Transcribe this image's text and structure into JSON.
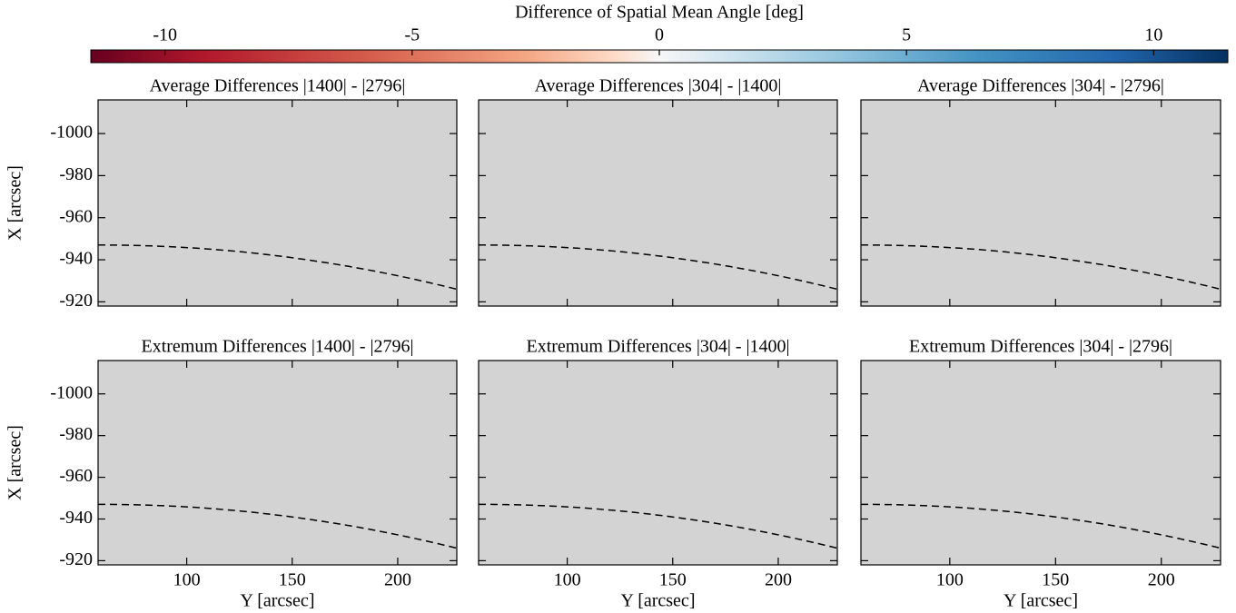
{
  "colorbar": {
    "label": "Difference of Spatial Mean Angle [deg]",
    "lim": [
      -11.5,
      11.5
    ],
    "ticks": [
      -10,
      -5,
      0,
      5,
      10
    ]
  },
  "chart_data": [
    {
      "type": "image",
      "title": "Average Differences |1400| - |2796|",
      "ylabel": "X [arcsec]",
      "xlim": [
        58,
        228
      ],
      "ylim": [
        -918,
        -1016
      ],
      "xticks": [
        100,
        150,
        200
      ],
      "yticks": [
        -1000,
        -980,
        -960,
        -940,
        -920
      ]
    },
    {
      "type": "image",
      "title": "Average Differences |304| - |1400|",
      "xlim": [
        58,
        228
      ],
      "ylim": [
        -918,
        -1016
      ],
      "xticks": [
        100,
        150,
        200
      ],
      "yticks": [
        -1000,
        -980,
        -960,
        -940,
        -920
      ]
    },
    {
      "type": "image",
      "title": "Average Differences |304| - |2796|",
      "xlim": [
        58,
        228
      ],
      "ylim": [
        -918,
        -1016
      ],
      "xticks": [
        100,
        150,
        200
      ],
      "yticks": [
        -1000,
        -980,
        -960,
        -940,
        -920
      ]
    },
    {
      "type": "image",
      "title": "Extremum Differences |1400| - |2796|",
      "xlabel": "Y [arcsec]",
      "ylabel": "X [arcsec]",
      "xlim": [
        58,
        228
      ],
      "ylim": [
        -918,
        -1016
      ],
      "xticks": [
        100,
        150,
        200
      ],
      "yticks": [
        -1000,
        -980,
        -960,
        -940,
        -920
      ]
    },
    {
      "type": "image",
      "title": "Extremum Differences |304| - |1400|",
      "xlabel": "Y [arcsec]",
      "xlim": [
        58,
        228
      ],
      "ylim": [
        -918,
        -1016
      ],
      "xticks": [
        100,
        150,
        200
      ],
      "yticks": [
        -1000,
        -980,
        -960,
        -940,
        -920
      ]
    },
    {
      "type": "image",
      "title": "Extremum Differences |304| - |2796|",
      "xlabel": "Y [arcsec]",
      "xlim": [
        58,
        228
      ],
      "ylim": [
        -918,
        -1016
      ],
      "xticks": [
        100,
        150,
        200
      ],
      "yticks": [
        -1000,
        -980,
        -960,
        -940,
        -920
      ]
    }
  ]
}
